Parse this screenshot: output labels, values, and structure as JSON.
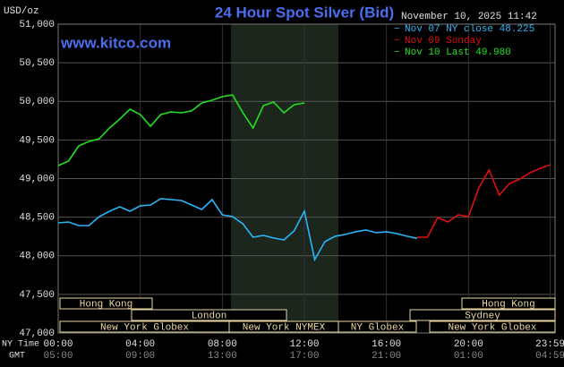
{
  "chart_data": {
    "type": "line",
    "title": "24 Hour Spot Silver (Bid)",
    "subtitle": "www.kitco.com",
    "y_label": "USD/oz",
    "timestamp": "November 10, 2025 11:42",
    "x_axis_labels": [
      "NY Time",
      "GMT"
    ],
    "x": [
      0,
      0.5,
      1,
      1.5,
      2,
      2.5,
      3,
      3.5,
      4,
      4.5,
      5,
      5.5,
      6,
      6.5,
      7,
      7.5,
      8,
      8.5,
      9,
      9.5,
      10,
      10.5,
      11,
      11.5,
      12,
      12.5,
      13,
      13.5,
      14,
      14.5,
      15,
      15.5,
      16,
      16.5,
      17,
      17.5,
      18,
      18.5,
      19,
      19.5,
      20,
      20.5,
      21,
      21.5,
      22,
      22.5,
      23,
      23.5,
      24
    ],
    "series": [
      {
        "name": "Nov 07 NY close 48.225",
        "color": "#29b6f6",
        "values": [
          48426,
          48438,
          48391,
          48391,
          48507,
          48577,
          48635,
          48577,
          48647,
          48658,
          48739,
          48728,
          48716,
          48658,
          48600,
          48728,
          48530,
          48507,
          48415,
          48241,
          48264,
          48230,
          48206,
          48322,
          48577,
          47951,
          48183,
          48253,
          48276,
          48311,
          48334,
          48299,
          48311,
          48288,
          48253,
          48225,
          null,
          null,
          null,
          null,
          null,
          null,
          null,
          null,
          null,
          null,
          null,
          null,
          null
        ]
      },
      {
        "name": "Nov 09 Sunday",
        "color": "#e01010",
        "values": [
          null,
          null,
          null,
          null,
          null,
          null,
          null,
          null,
          null,
          null,
          null,
          null,
          null,
          null,
          null,
          null,
          null,
          null,
          null,
          null,
          null,
          null,
          null,
          null,
          null,
          null,
          null,
          null,
          null,
          null,
          null,
          null,
          null,
          null,
          null,
          48241,
          48241,
          48496,
          48438,
          48530,
          48507,
          48879,
          49110,
          48786,
          48936,
          48994,
          49075,
          49133,
          49180
        ]
      },
      {
        "name": "Nov 10 Last 49.980",
        "color": "#22e022",
        "values": [
          49168,
          49226,
          49423,
          49481,
          49516,
          49655,
          49771,
          49899,
          49829,
          49678,
          49829,
          49864,
          49852,
          49876,
          49980,
          50014,
          50061,
          50084,
          49852,
          49655,
          49945,
          49991,
          49852,
          49957,
          49980,
          null,
          null,
          null,
          null,
          null,
          null,
          null,
          null,
          null,
          null,
          null,
          null,
          null,
          null,
          null,
          null,
          null,
          null,
          null,
          null,
          null,
          null,
          null,
          null
        ]
      }
    ],
    "xlim": [
      0,
      24
    ],
    "xticks": [
      {
        "value": 0,
        "label": "00:00"
      },
      {
        "value": 4,
        "label": "04:00"
      },
      {
        "value": 8,
        "label": "08:00"
      },
      {
        "value": 12,
        "label": "12:00"
      },
      {
        "value": 16,
        "label": "16:00"
      },
      {
        "value": 20,
        "label": "20:00"
      },
      {
        "value": 23.983,
        "label": "23:59"
      }
    ],
    "gmt_labels": [
      "05:00",
      "09:00",
      "13:00",
      "17:00",
      "21:00",
      "01:00",
      "04:59"
    ],
    "ylim": [
      47000,
      51000
    ],
    "yticks": [
      {
        "value": 47000,
        "label": "47,000"
      },
      {
        "value": 47500,
        "label": "47,500"
      },
      {
        "value": 48000,
        "label": "48,000"
      },
      {
        "value": 48500,
        "label": "48,500"
      },
      {
        "value": 49000,
        "label": "49,000"
      },
      {
        "value": 49500,
        "label": "49,500"
      },
      {
        "value": 50000,
        "label": "50,000"
      },
      {
        "value": 50500,
        "label": "50,500"
      },
      {
        "value": 51000,
        "label": "51,000"
      }
    ],
    "grid": true,
    "sessions": [
      "Hong Kong",
      "London",
      "New York Globex",
      "New York NYMEX",
      "NY Globex",
      "Sydney",
      "Hong Kong",
      "New York Globex"
    ]
  }
}
